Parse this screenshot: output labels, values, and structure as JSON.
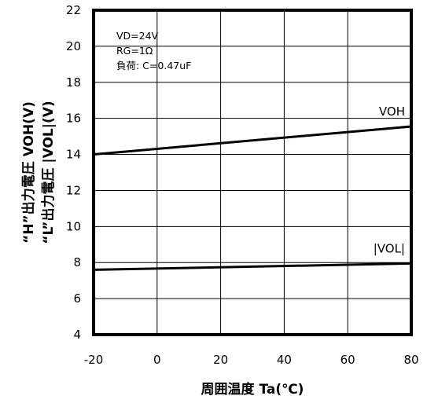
{
  "chart_data": {
    "type": "line",
    "xlabel": "周囲温度 Ta(℃)",
    "ylabel_lines": [
      "“H”出力電圧 VOH(V)",
      "“L”出力電圧 |VOL|(V)"
    ],
    "xlim": [
      -20,
      80
    ],
    "ylim": [
      4,
      22
    ],
    "x_ticks": [
      -20,
      0,
      20,
      40,
      60,
      80
    ],
    "y_ticks": [
      4,
      6,
      8,
      10,
      12,
      14,
      16,
      18,
      20,
      22
    ],
    "grid": true,
    "annotations": [
      "VD=24V",
      "RG=1Ω",
      "負荷: C=0.47uF"
    ],
    "series": [
      {
        "name": "VOH",
        "x": [
          -20,
          80
        ],
        "y": [
          14.0,
          15.55
        ]
      },
      {
        "name": "|VOL|",
        "x": [
          -20,
          80
        ],
        "y": [
          7.6,
          7.95
        ]
      }
    ],
    "colors": {
      "line": "#000000",
      "grid": "#000000"
    }
  }
}
